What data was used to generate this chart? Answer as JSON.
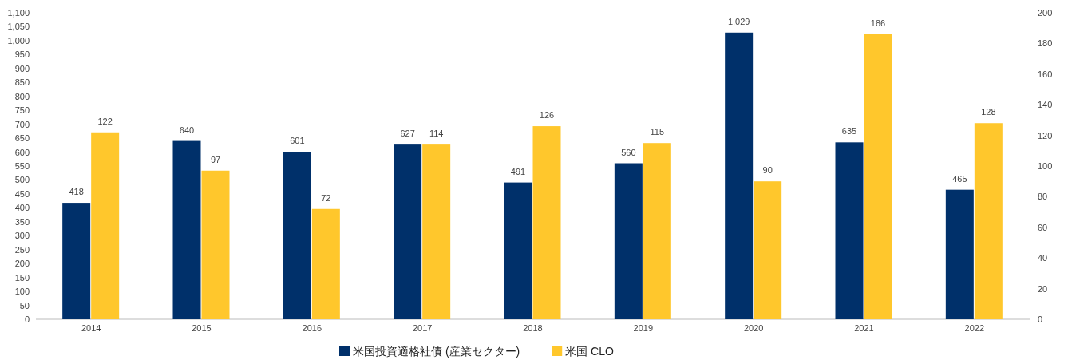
{
  "chart_data": {
    "type": "bar",
    "categories": [
      "2014",
      "2015",
      "2016",
      "2017",
      "2018",
      "2019",
      "2020",
      "2021",
      "2022"
    ],
    "series": [
      {
        "name": "米国投資適格社債 (産業セクター)",
        "color": "#00306a",
        "values": [
          418,
          640,
          601,
          627,
          491,
          560,
          1029,
          635,
          465
        ],
        "value_labels": [
          "418",
          "640",
          "601",
          "627",
          "491",
          "560",
          "1,029",
          "635",
          "465"
        ]
      },
      {
        "name": "米国 CLO",
        "color": "#ffc72c",
        "axis": "y2",
        "values": [
          122,
          97,
          72,
          114,
          126,
          115,
          90,
          186,
          128
        ],
        "value_labels": [
          "122",
          "97",
          "72",
          "114",
          "126",
          "115",
          "90",
          "186",
          "128"
        ]
      }
    ],
    "ylim": [
      0,
      1100
    ],
    "yticks": [
      0,
      50,
      100,
      150,
      200,
      250,
      300,
      350,
      400,
      450,
      500,
      550,
      600,
      650,
      700,
      750,
      800,
      850,
      900,
      950,
      {
        "value": 1000,
        "label": "1,000"
      },
      {
        "value": 1050,
        "label": "1,050"
      },
      {
        "value": 1100,
        "label": "1,100"
      }
    ],
    "y2lim": [
      0,
      200
    ],
    "y2ticks": [
      0,
      20,
      40,
      60,
      80,
      100,
      120,
      140,
      160,
      180,
      200
    ],
    "legend": "bottom",
    "grid": false
  }
}
